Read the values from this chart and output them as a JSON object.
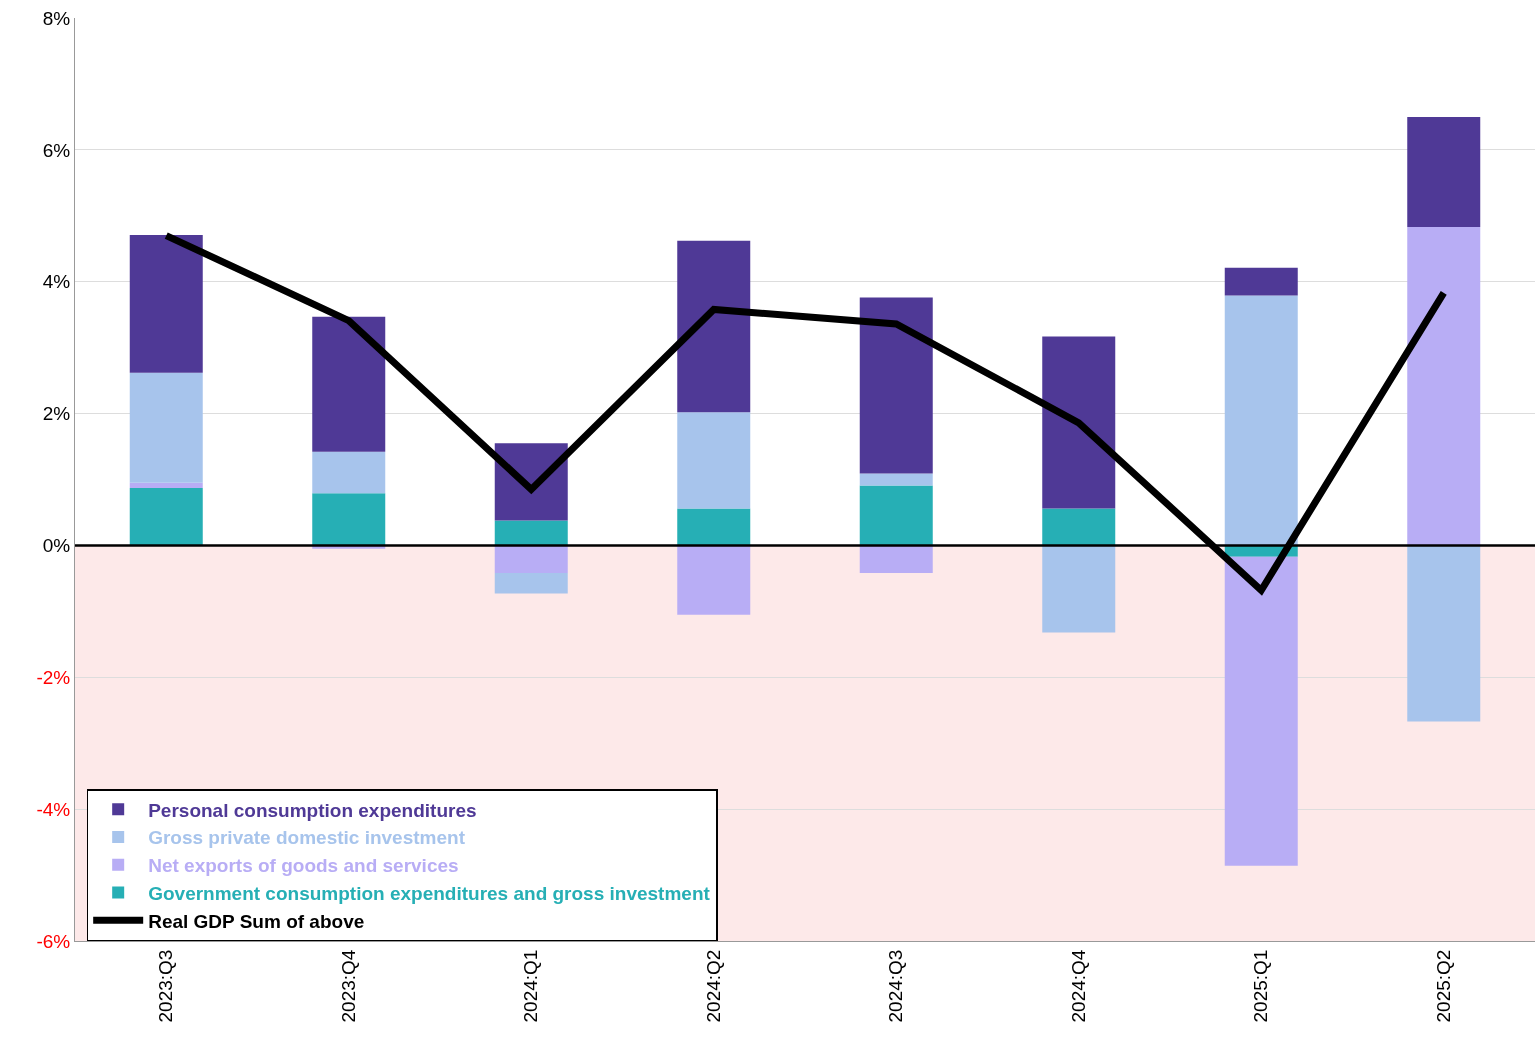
{
  "chart_data": {
    "type": "bar",
    "stacked": true,
    "categories": [
      "2023:Q3",
      "2023:Q4",
      "2024:Q1",
      "2024:Q2",
      "2024:Q3",
      "2024:Q4",
      "2025:Q1",
      "2025:Q2"
    ],
    "series": [
      {
        "name": "Government consumption expenditures and gross investment",
        "color": "#26afb5",
        "values": [
          0.87,
          0.79,
          0.38,
          0.56,
          0.91,
          0.56,
          -0.17,
          0
        ]
      },
      {
        "name": "Net exports of goods and services",
        "color": "#b8adf5",
        "values": [
          0.08,
          -0.05,
          -0.42,
          -1.05,
          -0.42,
          0,
          -4.69,
          4.83
        ]
      },
      {
        "name": "Gross private domestic investment",
        "color": "#a7c4ec",
        "values": [
          1.67,
          0.63,
          -0.31,
          1.46,
          0.18,
          -1.32,
          3.79,
          -2.67
        ]
      },
      {
        "name": "Personal consumption expenditures",
        "color": "#4f3996",
        "values": [
          2.09,
          2.05,
          1.17,
          2.6,
          2.67,
          2.61,
          0.42,
          1.67
        ]
      },
      {
        "name": "Real GDP Sum of above",
        "type": "line",
        "color": "#000000",
        "values": [
          4.7,
          3.41,
          0.85,
          3.58,
          3.36,
          1.86,
          -0.68,
          3.83
        ]
      }
    ],
    "ylim": [
      -6,
      8
    ],
    "yticks": [
      {
        "value": -6,
        "label": "-6%"
      },
      {
        "value": -4,
        "label": "-4%"
      },
      {
        "value": -2,
        "label": "-2%"
      },
      {
        "value": 0,
        "label": "0%"
      },
      {
        "value": 2,
        "label": "2%"
      },
      {
        "value": 4,
        "label": "4%"
      },
      {
        "value": 6,
        "label": "6%"
      },
      {
        "value": 8,
        "label": "8%"
      }
    ],
    "bands": [
      {
        "axis": "y",
        "from": -6,
        "to": 0,
        "color": "#fde9e9"
      }
    ],
    "ref_lines": [
      {
        "axis": "y",
        "value": 0,
        "color": "#000000"
      }
    ],
    "grid": "y",
    "legend": "bottom left",
    "marker": "none",
    "line_style": "solid"
  }
}
